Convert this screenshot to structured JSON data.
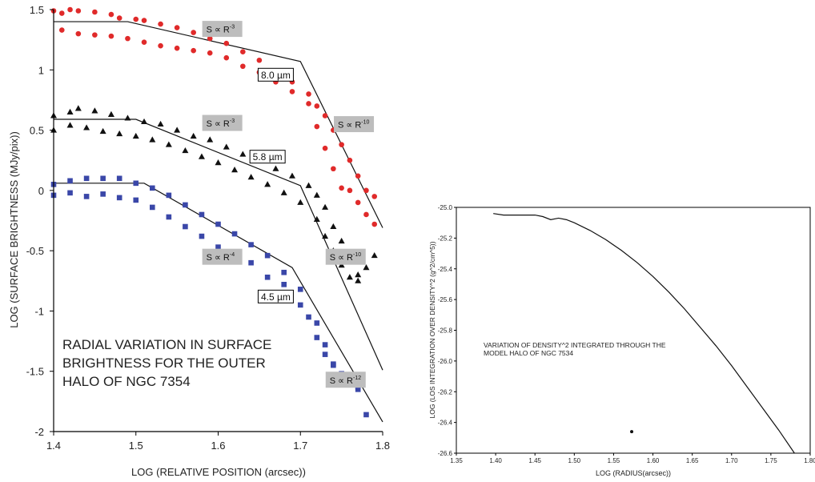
{
  "chart_data": [
    {
      "type": "scatter",
      "title": "RADIAL VARIATION IN SURFACE BRIGHTNESS FOR THE OUTER HALO OF NGC 7354",
      "title_lines": [
        "RADIAL VARIATION IN SURFACE",
        "BRIGHTNESS FOR THE OUTER",
        "HALO OF NGC 7354"
      ],
      "xlabel": "LOG (RELATIVE POSITION (arcsec))",
      "ylabel": "LOG (SURFACE BRIGHTNESS (MJy/pix))",
      "xlim": [
        1.4,
        1.8
      ],
      "ylim": [
        -2,
        1.5
      ],
      "xticks": [
        "1.4",
        "1.5",
        "1.6",
        "1.7",
        "1.8"
      ],
      "yticks": [
        "-2",
        "-1.5",
        "-1",
        "-0.5",
        "0",
        "0.5",
        "1",
        "1.5"
      ],
      "grid": false,
      "series": [
        {
          "label": "8.0 µm",
          "marker": "circle",
          "color": "#e02a2a",
          "points": [
            [
              1.4,
              1.49
            ],
            [
              1.41,
              1.47
            ],
            [
              1.42,
              1.5
            ],
            [
              1.43,
              1.49
            ],
            [
              1.45,
              1.48
            ],
            [
              1.47,
              1.46
            ],
            [
              1.48,
              1.43
            ],
            [
              1.5,
              1.42
            ],
            [
              1.51,
              1.41
            ],
            [
              1.53,
              1.38
            ],
            [
              1.55,
              1.35
            ],
            [
              1.57,
              1.31
            ],
            [
              1.59,
              1.26
            ],
            [
              1.61,
              1.22
            ],
            [
              1.63,
              1.15
            ],
            [
              1.65,
              1.08
            ],
            [
              1.67,
              0.98
            ],
            [
              1.69,
              0.9
            ],
            [
              1.71,
              0.8
            ],
            [
              1.72,
              0.7
            ],
            [
              1.73,
              0.62
            ],
            [
              1.74,
              0.5
            ],
            [
              1.75,
              0.38
            ],
            [
              1.76,
              0.25
            ],
            [
              1.77,
              0.12
            ],
            [
              1.78,
              0.0
            ],
            [
              1.79,
              -0.05
            ],
            [
              1.41,
              1.33
            ],
            [
              1.43,
              1.3
            ],
            [
              1.45,
              1.29
            ],
            [
              1.47,
              1.28
            ],
            [
              1.49,
              1.26
            ],
            [
              1.51,
              1.23
            ],
            [
              1.53,
              1.2
            ],
            [
              1.55,
              1.18
            ],
            [
              1.57,
              1.16
            ],
            [
              1.59,
              1.14
            ],
            [
              1.61,
              1.1
            ],
            [
              1.63,
              1.03
            ],
            [
              1.65,
              0.98
            ],
            [
              1.67,
              0.9
            ],
            [
              1.69,
              0.82
            ],
            [
              1.71,
              0.72
            ],
            [
              1.72,
              0.53
            ],
            [
              1.73,
              0.35
            ],
            [
              1.74,
              0.18
            ],
            [
              1.75,
              0.02
            ],
            [
              1.76,
              0.0
            ],
            [
              1.77,
              -0.1
            ],
            [
              1.78,
              -0.2
            ],
            [
              1.79,
              -0.28
            ]
          ]
        },
        {
          "label": "5.8 µm",
          "marker": "triangle",
          "color": "#111111",
          "points": [
            [
              1.4,
              0.62
            ],
            [
              1.42,
              0.65
            ],
            [
              1.43,
              0.68
            ],
            [
              1.45,
              0.66
            ],
            [
              1.47,
              0.63
            ],
            [
              1.49,
              0.6
            ],
            [
              1.51,
              0.57
            ],
            [
              1.53,
              0.55
            ],
            [
              1.55,
              0.5
            ],
            [
              1.57,
              0.45
            ],
            [
              1.59,
              0.42
            ],
            [
              1.61,
              0.36
            ],
            [
              1.63,
              0.3
            ],
            [
              1.65,
              0.25
            ],
            [
              1.67,
              0.18
            ],
            [
              1.69,
              0.12
            ],
            [
              1.71,
              0.04
            ],
            [
              1.72,
              -0.04
            ],
            [
              1.73,
              -0.14
            ],
            [
              1.74,
              -0.3
            ],
            [
              1.75,
              -0.42
            ],
            [
              1.76,
              -0.56
            ],
            [
              1.77,
              -0.7
            ],
            [
              1.78,
              -0.64
            ],
            [
              1.79,
              -0.54
            ],
            [
              1.4,
              0.5
            ],
            [
              1.42,
              0.54
            ],
            [
              1.44,
              0.52
            ],
            [
              1.46,
              0.49
            ],
            [
              1.48,
              0.47
            ],
            [
              1.5,
              0.45
            ],
            [
              1.52,
              0.42
            ],
            [
              1.54,
              0.38
            ],
            [
              1.56,
              0.33
            ],
            [
              1.58,
              0.28
            ],
            [
              1.6,
              0.23
            ],
            [
              1.62,
              0.17
            ],
            [
              1.64,
              0.11
            ],
            [
              1.66,
              0.05
            ],
            [
              1.68,
              -0.02
            ],
            [
              1.7,
              -0.1
            ],
            [
              1.72,
              -0.24
            ],
            [
              1.73,
              -0.38
            ],
            [
              1.74,
              -0.5
            ],
            [
              1.75,
              -0.62
            ],
            [
              1.76,
              -0.72
            ],
            [
              1.77,
              -0.75
            ]
          ]
        },
        {
          "label": "4.5 µm",
          "marker": "square",
          "color": "#3a47a8",
          "points": [
            [
              1.4,
              0.05
            ],
            [
              1.42,
              0.08
            ],
            [
              1.44,
              0.1
            ],
            [
              1.46,
              0.1
            ],
            [
              1.48,
              0.1
            ],
            [
              1.5,
              0.06
            ],
            [
              1.52,
              0.02
            ],
            [
              1.54,
              -0.04
            ],
            [
              1.56,
              -0.12
            ],
            [
              1.58,
              -0.2
            ],
            [
              1.6,
              -0.28
            ],
            [
              1.62,
              -0.36
            ],
            [
              1.64,
              -0.45
            ],
            [
              1.66,
              -0.54
            ],
            [
              1.68,
              -0.68
            ],
            [
              1.7,
              -0.82
            ],
            [
              1.72,
              -1.1
            ],
            [
              1.73,
              -1.28
            ],
            [
              1.74,
              -1.45
            ],
            [
              1.75,
              -1.52
            ],
            [
              1.76,
              -1.6
            ],
            [
              1.77,
              -1.65
            ],
            [
              1.78,
              -1.86
            ],
            [
              1.4,
              -0.04
            ],
            [
              1.42,
              -0.02
            ],
            [
              1.44,
              -0.05
            ],
            [
              1.46,
              -0.03
            ],
            [
              1.48,
              -0.06
            ],
            [
              1.5,
              -0.08
            ],
            [
              1.52,
              -0.14
            ],
            [
              1.54,
              -0.22
            ],
            [
              1.56,
              -0.3
            ],
            [
              1.58,
              -0.38
            ],
            [
              1.6,
              -0.47
            ],
            [
              1.62,
              -0.55
            ],
            [
              1.64,
              -0.6
            ],
            [
              1.66,
              -0.72
            ],
            [
              1.68,
              -0.78
            ],
            [
              1.7,
              -0.95
            ],
            [
              1.71,
              -1.05
            ],
            [
              1.72,
              -1.22
            ],
            [
              1.73,
              -1.36
            ],
            [
              1.74,
              -1.44
            ],
            [
              1.75,
              -1.55
            ],
            [
              1.76,
              -1.58
            ],
            [
              1.77,
              -1.63
            ]
          ]
        }
      ],
      "fit_lines": [
        [
          [
            1.4,
            1.4
          ],
          [
            1.49,
            1.4
          ],
          [
            1.7,
            1.07
          ],
          [
            1.8,
            -0.31
          ]
        ],
        [
          [
            1.4,
            0.59
          ],
          [
            1.5,
            0.59
          ],
          [
            1.7,
            0.04
          ],
          [
            1.8,
            -1.49
          ]
        ],
        [
          [
            1.4,
            0.06
          ],
          [
            1.51,
            0.06
          ],
          [
            1.69,
            -0.64
          ],
          [
            1.8,
            -1.92
          ]
        ]
      ],
      "annotations": [
        {
          "kind": "wavelength",
          "text": "8.0 µm",
          "x": 1.67,
          "y": 0.96
        },
        {
          "kind": "wavelength",
          "text": "5.8 µm",
          "x": 1.66,
          "y": 0.28
        },
        {
          "kind": "wavelength",
          "text": "4.5 µm",
          "x": 1.67,
          "y": -0.88
        },
        {
          "kind": "powerlaw",
          "base": "S ∝ R",
          "exp": "-3",
          "x": 1.605,
          "y": 1.34
        },
        {
          "kind": "powerlaw",
          "base": "S ∝ R",
          "exp": "-10",
          "x": 1.765,
          "y": 0.55
        },
        {
          "kind": "powerlaw",
          "base": "S ∝ R",
          "exp": "-3",
          "x": 1.605,
          "y": 0.56
        },
        {
          "kind": "powerlaw",
          "base": "S ∝ R",
          "exp": "-10",
          "x": 1.755,
          "y": -0.55
        },
        {
          "kind": "powerlaw",
          "base": "S ∝ R",
          "exp": "-4",
          "x": 1.605,
          "y": -0.55
        },
        {
          "kind": "powerlaw",
          "base": "S ∝ R",
          "exp": "-12",
          "x": 1.755,
          "y": -1.57
        }
      ]
    },
    {
      "type": "line",
      "title": "VARIATION OF DENSITY^2 INTEGRATED THROUGH THE MODEL HALO OF NGC 7534",
      "title_lines": [
        "VARIATION OF DENSITY^2 INTEGRATED THROUGH THE",
        "MODEL HALO OF NGC 7534"
      ],
      "xlabel": "LOG (RADIUS(arcsec))",
      "ylabel": "LOG (LOS INTEGRATION OVER DENSITY^2 (g^2/cm^5))",
      "xlim": [
        1.35,
        1.8
      ],
      "ylim": [
        -26.6,
        -25.0
      ],
      "xticks": [
        "1.35",
        "1.40",
        "1.45",
        "1.50",
        "1.55",
        "1.60",
        "1.65",
        "1.70",
        "1.75",
        "1.80"
      ],
      "yticks": [
        "-25.0",
        "-25.2",
        "-25.4",
        "-25.6",
        "-25.8",
        "-26.0",
        "-26.2",
        "-26.4",
        "-26.6"
      ],
      "grid": false,
      "series": [
        {
          "points": [
            [
              1.397,
              -25.04
            ],
            [
              1.41,
              -25.05
            ],
            [
              1.43,
              -25.05
            ],
            [
              1.45,
              -25.05
            ],
            [
              1.46,
              -25.06
            ],
            [
              1.47,
              -25.08
            ],
            [
              1.48,
              -25.07
            ],
            [
              1.49,
              -25.08
            ],
            [
              1.5,
              -25.1
            ],
            [
              1.52,
              -25.15
            ],
            [
              1.54,
              -25.21
            ],
            [
              1.56,
              -25.28
            ],
            [
              1.58,
              -25.36
            ],
            [
              1.6,
              -25.45
            ],
            [
              1.62,
              -25.55
            ],
            [
              1.64,
              -25.66
            ],
            [
              1.66,
              -25.78
            ],
            [
              1.68,
              -25.9
            ],
            [
              1.7,
              -26.03
            ],
            [
              1.72,
              -26.17
            ],
            [
              1.74,
              -26.31
            ],
            [
              1.76,
              -26.45
            ],
            [
              1.78,
              -26.6
            ]
          ]
        }
      ],
      "extra_point": [
        1.573,
        -26.46
      ]
    }
  ]
}
